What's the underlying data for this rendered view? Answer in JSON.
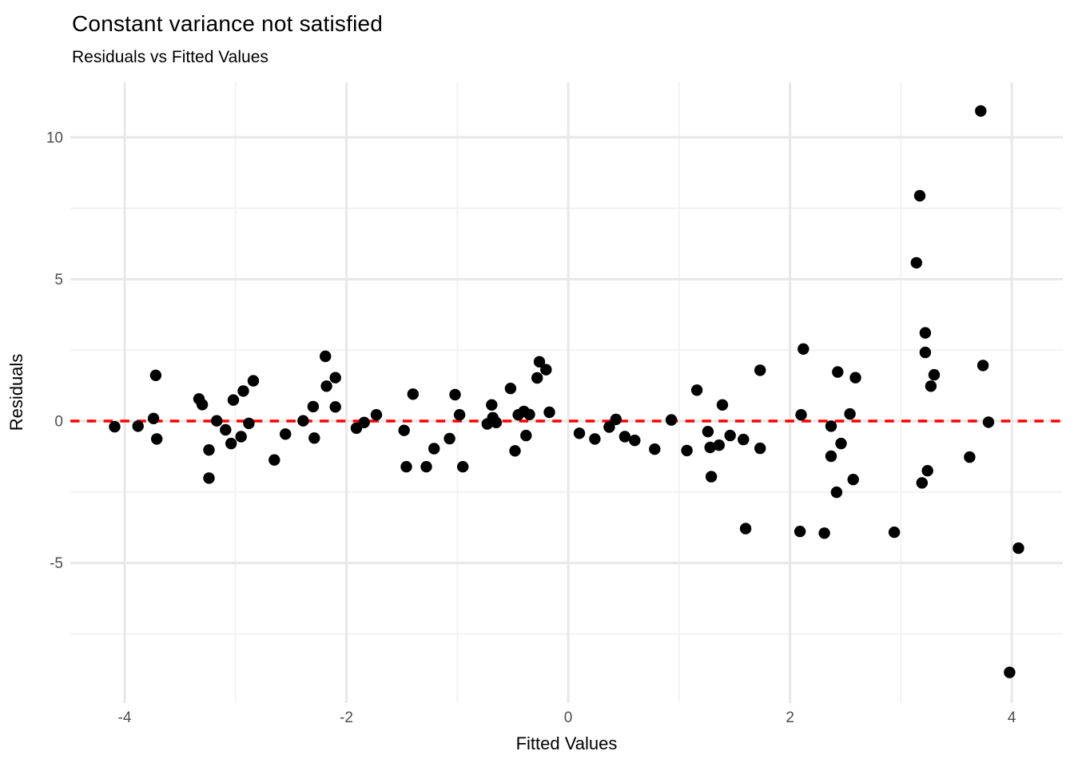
{
  "title": "Constant variance not satisfied",
  "subtitle": "Residuals vs Fitted Values",
  "chart_data": {
    "type": "scatter",
    "title": "Constant variance not satisfied",
    "subtitle": "Residuals vs Fitted Values",
    "xlabel": "Fitted Values",
    "ylabel": "Residuals",
    "xlim": [
      -4.49,
      4.46
    ],
    "ylim": [
      -9.94,
      11.94
    ],
    "x_major_ticks": [
      -4,
      -2,
      0,
      2,
      4
    ],
    "y_major_ticks": [
      -5,
      0,
      5,
      10
    ],
    "x_minor_ticks": [
      -3,
      -1,
      1,
      3
    ],
    "y_minor_ticks": [
      -7.5,
      -2.5,
      2.5,
      7.5
    ],
    "grid": true,
    "legend": "none",
    "point_color": "#000000",
    "point_radius": 7.2,
    "colors": {
      "reference_line": "#ff0000",
      "grid_major": "#e8e8e8",
      "grid_minor": "#f1f1f1",
      "tick_text": "#4d4d4d"
    },
    "reference_line": {
      "y": 0,
      "style": "dashed",
      "color": "#ff0000"
    },
    "points": [
      [
        -4.09,
        -0.2
      ],
      [
        -3.88,
        -0.18
      ],
      [
        -3.72,
        1.61
      ],
      [
        -3.74,
        0.09
      ],
      [
        -3.71,
        -0.63
      ],
      [
        -3.33,
        0.78
      ],
      [
        -3.3,
        0.58
      ],
      [
        -3.24,
        -1.02
      ],
      [
        -3.24,
        -2.01
      ],
      [
        -3.17,
        0.01
      ],
      [
        -3.09,
        -0.31
      ],
      [
        -3.04,
        -0.79
      ],
      [
        -3.02,
        0.74
      ],
      [
        -2.95,
        -0.55
      ],
      [
        -2.93,
        1.06
      ],
      [
        -2.88,
        -0.08
      ],
      [
        -2.84,
        1.42
      ],
      [
        -2.65,
        -1.37
      ],
      [
        -2.55,
        -0.46
      ],
      [
        -2.39,
        0.01
      ],
      [
        -2.3,
        0.51
      ],
      [
        -2.29,
        -0.6
      ],
      [
        -2.19,
        2.28
      ],
      [
        -2.18,
        1.23
      ],
      [
        -2.1,
        1.53
      ],
      [
        -2.1,
        0.5
      ],
      [
        -1.91,
        -0.25
      ],
      [
        -1.84,
        -0.05
      ],
      [
        -1.73,
        0.22
      ],
      [
        -1.48,
        -0.33
      ],
      [
        -1.4,
        0.95
      ],
      [
        -1.46,
        -1.61
      ],
      [
        -1.28,
        -1.61
      ],
      [
        -1.21,
        -0.97
      ],
      [
        -1.07,
        -0.62
      ],
      [
        -1.02,
        0.93
      ],
      [
        -0.98,
        0.22
      ],
      [
        -0.95,
        -1.61
      ],
      [
        -0.73,
        -0.1
      ],
      [
        -0.68,
        0.12
      ],
      [
        -0.65,
        -0.05
      ],
      [
        -0.69,
        0.57
      ],
      [
        -0.52,
        1.15
      ],
      [
        -0.48,
        -1.05
      ],
      [
        -0.45,
        0.22
      ],
      [
        -0.4,
        0.34
      ],
      [
        -0.35,
        0.23
      ],
      [
        -0.38,
        -0.51
      ],
      [
        -0.26,
        2.09
      ],
      [
        -0.2,
        1.81
      ],
      [
        -0.28,
        1.52
      ],
      [
        -0.17,
        0.31
      ],
      [
        0.1,
        -0.43
      ],
      [
        0.24,
        -0.63
      ],
      [
        0.37,
        -0.21
      ],
      [
        0.43,
        0.06
      ],
      [
        0.51,
        -0.55
      ],
      [
        0.6,
        -0.68
      ],
      [
        0.78,
        -0.99
      ],
      [
        0.93,
        0.04
      ],
      [
        1.07,
        -1.04
      ],
      [
        1.16,
        1.09
      ],
      [
        1.26,
        -0.37
      ],
      [
        1.28,
        -0.93
      ],
      [
        1.36,
        -0.85
      ],
      [
        1.29,
        -1.96
      ],
      [
        1.39,
        0.57
      ],
      [
        1.46,
        -0.51
      ],
      [
        1.58,
        -0.65
      ],
      [
        1.73,
        1.79
      ],
      [
        1.73,
        -0.96
      ],
      [
        1.6,
        -3.79
      ],
      [
        2.12,
        2.54
      ],
      [
        2.1,
        0.22
      ],
      [
        2.09,
        -3.89
      ],
      [
        2.31,
        -3.95
      ],
      [
        2.43,
        1.73
      ],
      [
        2.59,
        1.53
      ],
      [
        2.54,
        0.25
      ],
      [
        2.37,
        -0.18
      ],
      [
        2.46,
        -0.79
      ],
      [
        2.37,
        -1.24
      ],
      [
        2.57,
        -2.06
      ],
      [
        2.42,
        -2.51
      ],
      [
        2.94,
        -3.92
      ],
      [
        3.22,
        3.11
      ],
      [
        3.22,
        2.42
      ],
      [
        3.3,
        1.63
      ],
      [
        3.27,
        1.23
      ],
      [
        3.74,
        1.96
      ],
      [
        3.79,
        -0.04
      ],
      [
        3.62,
        -1.27
      ],
      [
        3.24,
        -1.75
      ],
      [
        3.19,
        -2.18
      ],
      [
        4.06,
        -4.48
      ],
      [
        3.72,
        10.93
      ],
      [
        3.17,
        7.94
      ],
      [
        3.14,
        5.58
      ],
      [
        3.98,
        -8.86
      ]
    ]
  }
}
